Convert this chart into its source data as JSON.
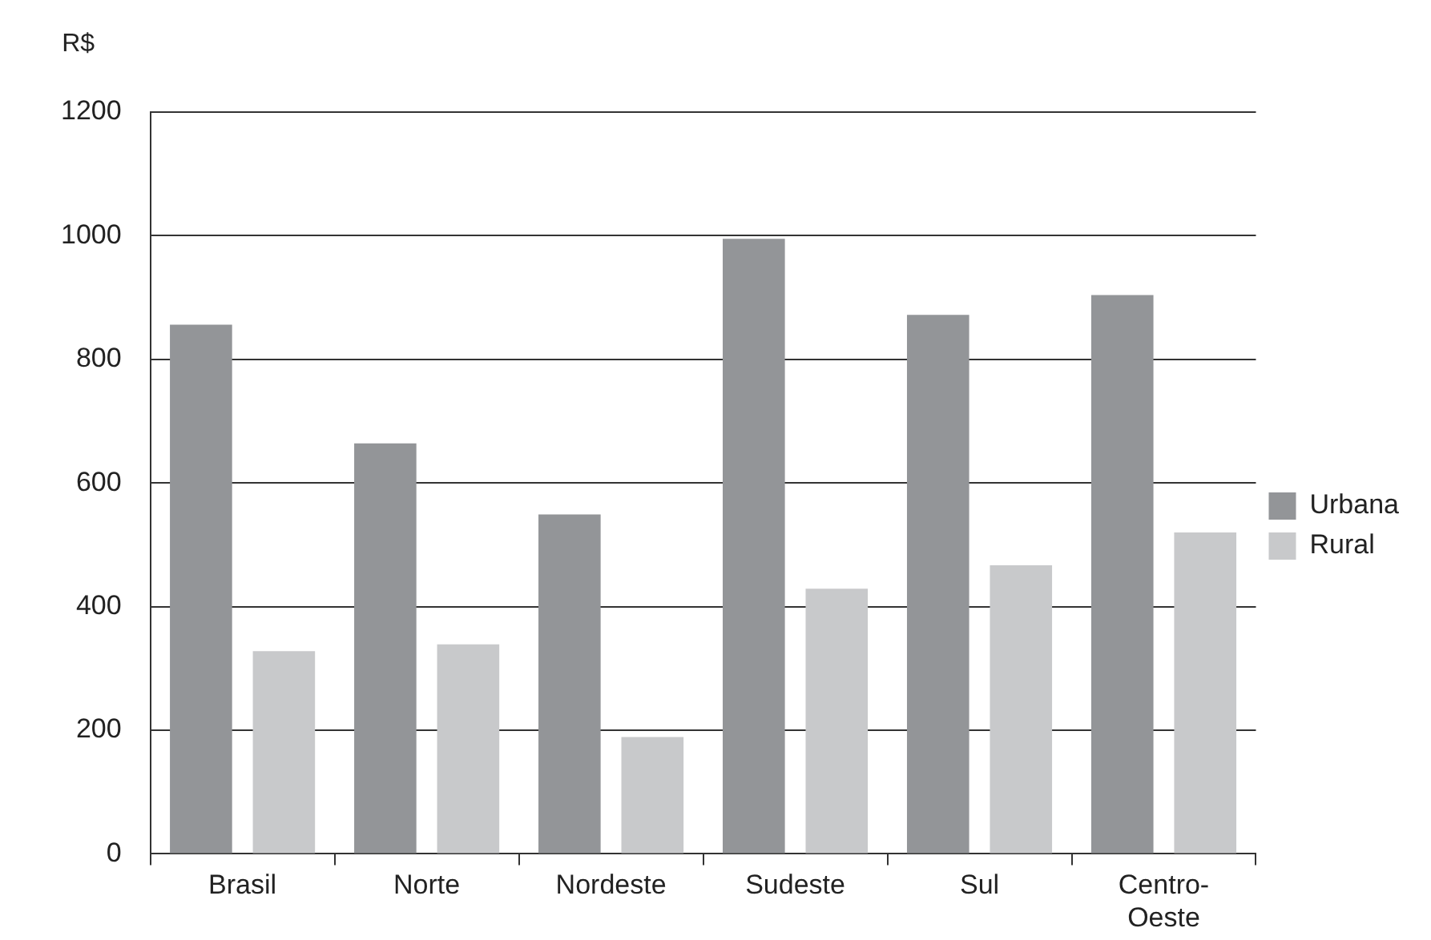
{
  "chart_data": {
    "type": "bar",
    "ylabel": "R$",
    "categories": [
      "Brasil",
      "Norte",
      "Nordeste",
      "Sudeste",
      "Sul",
      "Centro-Oeste"
    ],
    "series": [
      {
        "name": "Urbana",
        "color": "#939598",
        "values": [
          856,
          664,
          549,
          995,
          872,
          904
        ]
      },
      {
        "name": "Rural",
        "color": "#c8c9cb",
        "values": [
          328,
          339,
          189,
          429,
          467,
          520
        ]
      }
    ],
    "ylim": [
      0,
      1200
    ],
    "yticks": [
      0,
      200,
      400,
      600,
      800,
      1000,
      1200
    ],
    "grid": "y",
    "legend": "right"
  }
}
